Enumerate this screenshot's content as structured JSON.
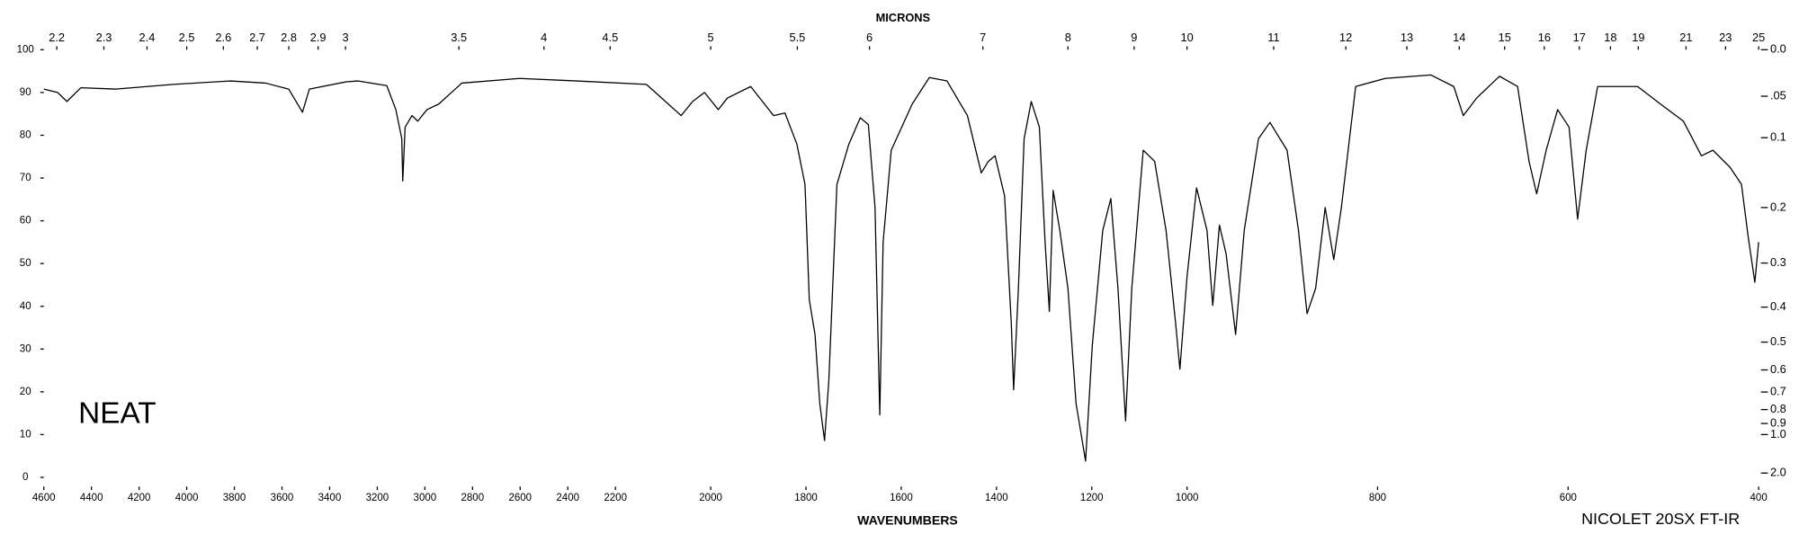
{
  "chart_data": {
    "type": "line",
    "x_label": "WAVENUMBERS",
    "x2_label": "MICRONS",
    "annotations": [
      "NEAT",
      "NICOLET 20SX FT-IR"
    ],
    "color": "#000000",
    "x": [
      4600,
      4542,
      4503,
      4445,
      4299,
      4057,
      3815,
      3669,
      3572,
      3514,
      3485,
      3330,
      3282,
      3160,
      3122,
      3097,
      3093,
      3083,
      3054,
      3030,
      2991,
      2942,
      2845,
      2603,
      2361,
      2135,
      2062,
      2038,
      2013,
      1984,
      1965,
      1916,
      1868,
      1844,
      1819,
      1802,
      1793,
      1781,
      1771,
      1761,
      1752,
      1735,
      1710,
      1686,
      1669,
      1655,
      1645,
      1638,
      1621,
      1577,
      1541,
      1504,
      1461,
      1432,
      1417,
      1403,
      1383,
      1369,
      1364,
      1354,
      1342,
      1327,
      1310,
      1298,
      1289,
      1281,
      1267,
      1250,
      1233,
      1213,
      1199,
      1177,
      1160,
      1145,
      1129,
      1116,
      1092,
      1068,
      1044,
      1024,
      1015,
      1000,
      990,
      979,
      973,
      966,
      959,
      949,
      940,
      925,
      913,
      895,
      883,
      874,
      865,
      855,
      846,
      838,
      823,
      792,
      744,
      720,
      710,
      696,
      672,
      653,
      641,
      633,
      623,
      611,
      599,
      590,
      581,
      569,
      527,
      503,
      479,
      460,
      448,
      430,
      418,
      411,
      404,
      400
    ],
    "values": [
      90.8,
      90.0,
      87.9,
      91.1,
      90.8,
      91.9,
      92.7,
      92.2,
      90.8,
      85.4,
      90.8,
      92.5,
      92.7,
      91.6,
      86.0,
      79.2,
      69.3,
      81.9,
      84.6,
      83.3,
      86.0,
      87.3,
      92.2,
      93.3,
      92.7,
      91.9,
      84.6,
      87.9,
      90.0,
      86.0,
      88.7,
      91.4,
      84.6,
      85.2,
      77.9,
      68.5,
      41.5,
      33.4,
      17.3,
      8.6,
      22.6,
      68.5,
      77.9,
      84.1,
      82.5,
      63.1,
      14.6,
      55.0,
      76.5,
      87.3,
      93.5,
      92.7,
      84.6,
      71.2,
      73.9,
      75.2,
      65.8,
      36.1,
      20.5,
      44.2,
      79.2,
      87.9,
      81.9,
      55.0,
      38.8,
      67.1,
      57.7,
      44.2,
      17.3,
      3.8,
      30.7,
      57.7,
      65.2,
      44.2,
      13.2,
      44.2,
      76.5,
      73.9,
      57.7,
      36.1,
      25.3,
      46.9,
      67.7,
      57.7,
      40.2,
      59.0,
      52.3,
      33.4,
      57.7,
      79.2,
      83.0,
      76.5,
      57.7,
      38.3,
      44.2,
      63.1,
      50.9,
      63.1,
      91.4,
      93.3,
      94.1,
      91.4,
      84.6,
      88.7,
      93.8,
      91.4,
      73.9,
      66.3,
      76.5,
      86.0,
      81.9,
      60.4,
      76.5,
      91.4,
      91.4,
      87.3,
      83.3,
      75.2,
      76.5,
      72.5,
      68.5,
      56.3,
      45.6,
      55.0
    ],
    "xlim": [
      4600,
      400
    ],
    "xscale_breaks": [
      2200,
      1000
    ],
    "xticks": [
      4600,
      4400,
      4200,
      4000,
      3800,
      3600,
      3400,
      3200,
      3000,
      2800,
      2600,
      2400,
      2200,
      2000,
      1800,
      1600,
      1400,
      1200,
      1000,
      800,
      600,
      400
    ],
    "x2scale": "microns",
    "x2ticks": [
      2.2,
      2.3,
      2.4,
      2.5,
      2.6,
      2.7,
      2.8,
      2.9,
      3,
      3.5,
      4,
      4.5,
      5,
      5.5,
      6,
      7,
      8,
      9,
      10,
      11,
      12,
      13,
      14,
      15,
      16,
      17,
      18,
      19,
      21,
      23,
      25
    ],
    "ylim": [
      0,
      100
    ],
    "yticks": [
      0,
      10,
      20,
      30,
      40,
      50,
      60,
      70,
      80,
      90,
      100
    ],
    "y2scale": "absorbance",
    "y2lim": [
      0,
      2
    ],
    "y2ticks": [
      {
        "value": 0,
        "label": "0.0"
      },
      {
        "value": 0.05,
        "label": ".05"
      },
      0.1,
      0.2,
      0.3,
      0.4,
      0.5,
      0.6,
      0.7,
      0.8,
      0.9,
      {
        "value": 1,
        "label": "1.0"
      },
      {
        "value": 2,
        "label": "2.0"
      }
    ]
  }
}
